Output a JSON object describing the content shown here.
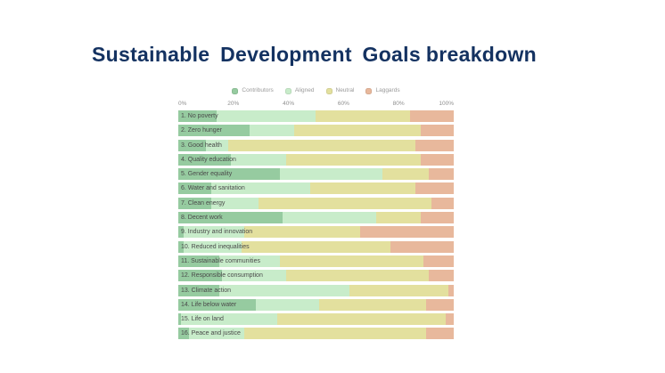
{
  "page": {
    "background": "#ffffff"
  },
  "title": {
    "part1": "Sustainable Development Goals",
    "part2": "breakdown",
    "color": "#143261"
  },
  "chart_data": {
    "type": "bar",
    "stacked": true,
    "orientation": "horizontal",
    "title": "Sustainable Development Goals breakdown",
    "legend_position": "top",
    "grid": false,
    "x_axis": {
      "ticks": [
        "0%",
        "20%",
        "40%",
        "60%",
        "80%",
        "100%"
      ],
      "tick_positions": [
        0,
        20,
        40,
        60,
        80,
        100
      ],
      "range": [
        0,
        100
      ],
      "unit": "%"
    },
    "categories": [
      "1. No poverty",
      "2. Zero hunger",
      "3. Good health",
      "4. Quality education",
      "5. Gender equality",
      "6. Water and sanitation",
      "7. Clean energy",
      "8. Decent work",
      "9. Industry and innovation",
      "10. Reduced inequalities",
      "11. Sustainable communities",
      "12. Responsible consumption",
      "13. Climate action",
      "14. Life below water",
      "15. Life on land",
      "16. Peace and justice"
    ],
    "series": [
      {
        "name": "Contributors",
        "color": "#96cba0",
        "values": [
          14,
          26,
          10,
          19,
          37,
          12,
          12,
          38,
          2,
          2,
          15,
          16,
          15,
          28,
          1,
          4
        ]
      },
      {
        "name": "Aligned",
        "color": "#c8ecca",
        "values": [
          36,
          16,
          8,
          20,
          37,
          36,
          17,
          34,
          22,
          21,
          22,
          23,
          47,
          23,
          35,
          20
        ]
      },
      {
        "name": "Neutral",
        "color": "#e3e09e",
        "values": [
          34,
          46,
          68,
          49,
          17,
          38,
          63,
          16,
          42,
          54,
          52,
          52,
          36,
          39,
          61,
          66
        ]
      },
      {
        "name": "Laggards",
        "color": "#e8b89c",
        "values": [
          16,
          12,
          14,
          12,
          9,
          14,
          8,
          12,
          34,
          23,
          11,
          9,
          2,
          10,
          3,
          10
        ]
      }
    ],
    "colors": {
      "bar_label": "#4a4a4a",
      "axis_label": "#8e8e8e",
      "legend_label": "#9a9a9a",
      "title": "#143261"
    }
  }
}
